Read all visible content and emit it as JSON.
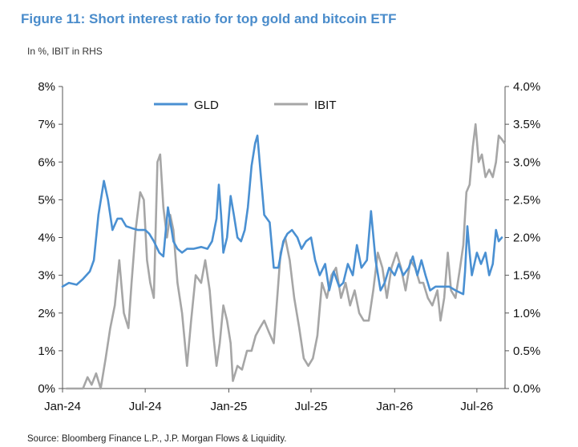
{
  "title": "Figure 11: Short interest ratio for top gold and bitcoin ETF",
  "subtitle": "In %, IBIT in RHS",
  "source": "Source: Bloomberg Finance L.P., J.P. Morgan Flows & Liquidity.",
  "chart_data": {
    "type": "line",
    "x_ticks": [
      "Jan-24",
      "Jul-24",
      "Jan-25",
      "Jul-25",
      "Jan-26",
      "Jul-26"
    ],
    "x_domain": [
      "2024-01",
      "2026-09"
    ],
    "y_left": {
      "ticks": [
        "0%",
        "1%",
        "2%",
        "3%",
        "4%",
        "5%",
        "6%",
        "7%",
        "8%"
      ],
      "range": [
        0,
        8
      ]
    },
    "y_right": {
      "ticks": [
        "0.0%",
        "0.5%",
        "1.0%",
        "1.5%",
        "2.0%",
        "2.5%",
        "3.0%",
        "3.5%",
        "4.0%"
      ],
      "range": [
        0,
        4
      ]
    },
    "grid": false,
    "legend": "top-center",
    "colors": {
      "GLD": "#4a90d2",
      "IBIT": "#a6a6a6"
    },
    "series": [
      {
        "name": "GLD",
        "axis": "left",
        "points": [
          [
            "2024-01-01",
            2.7
          ],
          [
            "2024-01-15",
            2.8
          ],
          [
            "2024-02-01",
            2.75
          ],
          [
            "2024-02-15",
            2.9
          ],
          [
            "2024-03-01",
            3.1
          ],
          [
            "2024-03-10",
            3.4
          ],
          [
            "2024-03-20",
            4.6
          ],
          [
            "2024-04-01",
            5.5
          ],
          [
            "2024-04-10",
            5.0
          ],
          [
            "2024-04-20",
            4.2
          ],
          [
            "2024-05-01",
            4.5
          ],
          [
            "2024-05-10",
            4.5
          ],
          [
            "2024-05-20",
            4.3
          ],
          [
            "2024-06-01",
            4.25
          ],
          [
            "2024-06-15",
            4.2
          ],
          [
            "2024-07-01",
            4.2
          ],
          [
            "2024-07-10",
            4.1
          ],
          [
            "2024-07-20",
            3.9
          ],
          [
            "2024-08-01",
            3.6
          ],
          [
            "2024-08-10",
            3.5
          ],
          [
            "2024-08-20",
            4.8
          ],
          [
            "2024-09-01",
            3.9
          ],
          [
            "2024-09-10",
            3.7
          ],
          [
            "2024-09-20",
            3.6
          ],
          [
            "2024-10-01",
            3.7
          ],
          [
            "2024-10-15",
            3.7
          ],
          [
            "2024-11-01",
            3.75
          ],
          [
            "2024-11-15",
            3.7
          ],
          [
            "2024-11-25",
            3.9
          ],
          [
            "2024-12-05",
            4.5
          ],
          [
            "2024-12-10",
            5.4
          ],
          [
            "2024-12-15",
            4.6
          ],
          [
            "2024-12-20",
            3.6
          ],
          [
            "2024-12-28",
            4.0
          ],
          [
            "2025-01-05",
            5.1
          ],
          [
            "2025-01-12",
            4.6
          ],
          [
            "2025-01-20",
            4.0
          ],
          [
            "2025-01-28",
            3.9
          ],
          [
            "2025-02-05",
            4.2
          ],
          [
            "2025-02-12",
            4.8
          ],
          [
            "2025-02-20",
            5.9
          ],
          [
            "2025-02-28",
            6.5
          ],
          [
            "2025-03-05",
            6.7
          ],
          [
            "2025-03-12",
            5.7
          ],
          [
            "2025-03-20",
            4.6
          ],
          [
            "2025-04-01",
            4.4
          ],
          [
            "2025-04-10",
            3.2
          ],
          [
            "2025-04-20",
            3.2
          ],
          [
            "2025-05-01",
            3.9
          ],
          [
            "2025-05-10",
            4.1
          ],
          [
            "2025-05-20",
            4.2
          ],
          [
            "2025-06-01",
            4.0
          ],
          [
            "2025-06-10",
            3.7
          ],
          [
            "2025-06-20",
            3.9
          ],
          [
            "2025-07-01",
            4.0
          ],
          [
            "2025-07-10",
            3.4
          ],
          [
            "2025-07-20",
            3.0
          ],
          [
            "2025-08-01",
            3.3
          ],
          [
            "2025-08-10",
            2.6
          ],
          [
            "2025-08-20",
            3.1
          ],
          [
            "2025-09-01",
            2.7
          ],
          [
            "2025-09-10",
            2.8
          ],
          [
            "2025-09-20",
            3.3
          ],
          [
            "2025-10-01",
            3.0
          ],
          [
            "2025-10-10",
            3.8
          ],
          [
            "2025-10-20",
            3.2
          ],
          [
            "2025-11-01",
            3.4
          ],
          [
            "2025-11-10",
            4.7
          ],
          [
            "2025-11-20",
            3.4
          ],
          [
            "2025-12-01",
            2.6
          ],
          [
            "2025-12-10",
            2.8
          ],
          [
            "2025-12-20",
            3.2
          ],
          [
            "2026-01-01",
            3.0
          ],
          [
            "2026-01-10",
            3.3
          ],
          [
            "2026-01-20",
            3.0
          ],
          [
            "2026-02-01",
            3.2
          ],
          [
            "2026-02-10",
            3.5
          ],
          [
            "2026-02-20",
            3.0
          ],
          [
            "2026-03-01",
            3.4
          ],
          [
            "2026-03-10",
            3.0
          ],
          [
            "2026-03-20",
            2.6
          ],
          [
            "2026-04-01",
            2.7
          ],
          [
            "2026-04-15",
            2.7
          ],
          [
            "2026-05-01",
            2.7
          ],
          [
            "2026-05-15",
            2.6
          ],
          [
            "2026-06-01",
            2.5
          ],
          [
            "2026-06-05",
            3.1
          ],
          [
            "2026-06-10",
            4.3
          ],
          [
            "2026-06-15",
            3.6
          ],
          [
            "2026-06-20",
            3.0
          ],
          [
            "2026-07-01",
            3.6
          ],
          [
            "2026-07-10",
            3.3
          ],
          [
            "2026-07-20",
            3.6
          ],
          [
            "2026-07-28",
            3.0
          ],
          [
            "2026-08-05",
            3.3
          ],
          [
            "2026-08-12",
            4.2
          ],
          [
            "2026-08-18",
            3.9
          ],
          [
            "2026-08-25",
            4.0
          ]
        ]
      },
      {
        "name": "IBIT",
        "axis": "right",
        "points": [
          [
            "2024-01-10",
            0.0
          ],
          [
            "2024-02-15",
            0.0
          ],
          [
            "2024-02-25",
            0.15
          ],
          [
            "2024-03-05",
            0.05
          ],
          [
            "2024-03-15",
            0.2
          ],
          [
            "2024-03-25",
            0.0
          ],
          [
            "2024-04-05",
            0.4
          ],
          [
            "2024-04-15",
            0.8
          ],
          [
            "2024-04-25",
            1.1
          ],
          [
            "2024-05-05",
            1.7
          ],
          [
            "2024-05-15",
            1.0
          ],
          [
            "2024-05-25",
            0.8
          ],
          [
            "2024-06-01",
            1.4
          ],
          [
            "2024-06-10",
            2.1
          ],
          [
            "2024-06-20",
            2.6
          ],
          [
            "2024-06-28",
            2.5
          ],
          [
            "2024-07-05",
            1.7
          ],
          [
            "2024-07-12",
            1.4
          ],
          [
            "2024-07-20",
            1.2
          ],
          [
            "2024-07-28",
            3.0
          ],
          [
            "2024-08-03",
            3.1
          ],
          [
            "2024-08-10",
            2.4
          ],
          [
            "2024-08-18",
            2.0
          ],
          [
            "2024-08-25",
            2.3
          ],
          [
            "2024-09-01",
            2.1
          ],
          [
            "2024-09-10",
            1.4
          ],
          [
            "2024-09-20",
            1.0
          ],
          [
            "2024-10-01",
            0.3
          ],
          [
            "2024-10-10",
            0.9
          ],
          [
            "2024-10-20",
            1.5
          ],
          [
            "2024-11-01",
            1.4
          ],
          [
            "2024-11-10",
            1.7
          ],
          [
            "2024-11-20",
            1.3
          ],
          [
            "2024-11-28",
            0.7
          ],
          [
            "2024-12-05",
            0.3
          ],
          [
            "2024-12-12",
            0.6
          ],
          [
            "2024-12-20",
            1.1
          ],
          [
            "2024-12-28",
            0.9
          ],
          [
            "2025-01-05",
            0.6
          ],
          [
            "2025-01-10",
            0.1
          ],
          [
            "2025-01-20",
            0.3
          ],
          [
            "2025-01-30",
            0.25
          ],
          [
            "2025-02-10",
            0.5
          ],
          [
            "2025-02-20",
            0.5
          ],
          [
            "2025-03-01",
            0.7
          ],
          [
            "2025-03-10",
            0.8
          ],
          [
            "2025-03-20",
            0.9
          ],
          [
            "2025-03-30",
            0.75
          ],
          [
            "2025-04-10",
            0.6
          ],
          [
            "2025-04-15",
            1.0
          ],
          [
            "2025-04-25",
            1.8
          ],
          [
            "2025-05-05",
            2.0
          ],
          [
            "2025-05-15",
            1.7
          ],
          [
            "2025-05-25",
            1.2
          ],
          [
            "2025-06-05",
            0.8
          ],
          [
            "2025-06-15",
            0.4
          ],
          [
            "2025-06-25",
            0.3
          ],
          [
            "2025-07-05",
            0.4
          ],
          [
            "2025-07-15",
            0.7
          ],
          [
            "2025-07-25",
            1.4
          ],
          [
            "2025-08-05",
            1.2
          ],
          [
            "2025-08-15",
            1.5
          ],
          [
            "2025-08-25",
            1.6
          ],
          [
            "2025-09-05",
            1.2
          ],
          [
            "2025-09-15",
            1.4
          ],
          [
            "2025-09-25",
            1.1
          ],
          [
            "2025-10-05",
            1.3
          ],
          [
            "2025-10-15",
            1.0
          ],
          [
            "2025-10-25",
            0.9
          ],
          [
            "2025-11-05",
            0.9
          ],
          [
            "2025-11-15",
            1.3
          ],
          [
            "2025-11-25",
            1.8
          ],
          [
            "2025-12-05",
            1.6
          ],
          [
            "2025-12-15",
            1.2
          ],
          [
            "2025-12-25",
            1.6
          ],
          [
            "2026-01-05",
            1.8
          ],
          [
            "2026-01-15",
            1.6
          ],
          [
            "2026-01-25",
            1.3
          ],
          [
            "2026-02-05",
            1.7
          ],
          [
            "2026-02-15",
            1.6
          ],
          [
            "2026-02-25",
            1.4
          ],
          [
            "2026-03-05",
            1.4
          ],
          [
            "2026-03-15",
            1.2
          ],
          [
            "2026-03-25",
            1.1
          ],
          [
            "2026-04-05",
            1.3
          ],
          [
            "2026-04-12",
            0.9
          ],
          [
            "2026-04-20",
            1.2
          ],
          [
            "2026-04-28",
            1.8
          ],
          [
            "2026-05-05",
            1.3
          ],
          [
            "2026-05-15",
            1.2
          ],
          [
            "2026-05-25",
            1.6
          ],
          [
            "2026-06-01",
            1.9
          ],
          [
            "2026-06-08",
            2.6
          ],
          [
            "2026-06-15",
            2.7
          ],
          [
            "2026-06-22",
            3.2
          ],
          [
            "2026-06-28",
            3.5
          ],
          [
            "2026-07-05",
            3.0
          ],
          [
            "2026-07-12",
            3.1
          ],
          [
            "2026-07-20",
            2.8
          ],
          [
            "2026-07-28",
            2.9
          ],
          [
            "2026-08-05",
            2.8
          ],
          [
            "2026-08-12",
            3.0
          ],
          [
            "2026-08-18",
            3.35
          ],
          [
            "2026-08-25",
            3.3
          ],
          [
            "2026-08-31",
            3.25
          ]
        ]
      }
    ]
  }
}
